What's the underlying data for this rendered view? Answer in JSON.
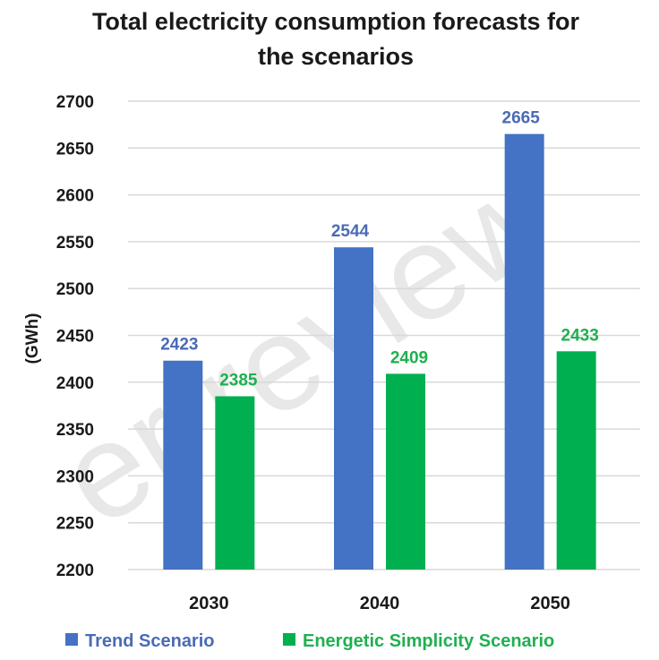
{
  "watermark": "er review",
  "chart_data": {
    "type": "bar",
    "title_lines": [
      "Total electricity consumption forecasts for",
      "the scenarios"
    ],
    "ylabel": "(GWh)",
    "xlabel": "",
    "categories": [
      "2030",
      "2040",
      "2050"
    ],
    "ylim": [
      2200,
      2700
    ],
    "yticks": [
      2200,
      2250,
      2300,
      2350,
      2400,
      2450,
      2500,
      2550,
      2600,
      2650,
      2700
    ],
    "grid": true,
    "legend_position": "bottom",
    "series": [
      {
        "name": "Trend Scenario",
        "color": "#4472c4",
        "label_color": "#4a6bb5",
        "values": [
          2423,
          2544,
          2665
        ]
      },
      {
        "name": "Energetic Simplicity Scenario",
        "color": "#00b050",
        "label_color": "#1fb050",
        "values": [
          2385,
          2409,
          2433
        ]
      }
    ]
  }
}
